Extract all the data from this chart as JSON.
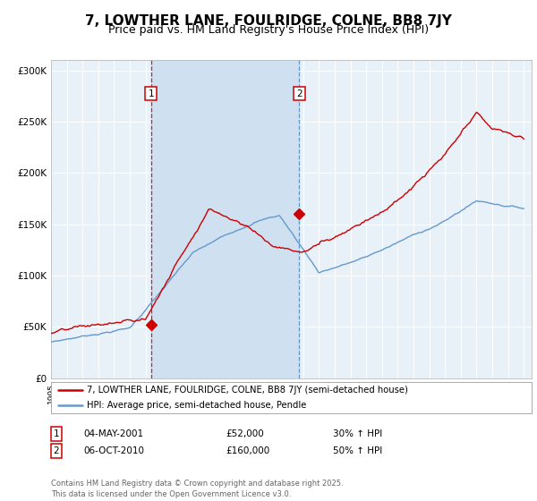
{
  "title": "7, LOWTHER LANE, FOULRIDGE, COLNE, BB8 7JY",
  "subtitle": "Price paid vs. HM Land Registry's House Price Index (HPI)",
  "ylim": [
    0,
    310000
  ],
  "yticks": [
    0,
    50000,
    100000,
    150000,
    200000,
    250000,
    300000
  ],
  "ytick_labels": [
    "£0",
    "£50K",
    "£100K",
    "£150K",
    "£200K",
    "£250K",
    "£300K"
  ],
  "purchase1_date": 2001.34,
  "purchase1_price": 52000,
  "purchase2_date": 2010.76,
  "purchase2_price": 160000,
  "red_line_color": "#cc0000",
  "blue_line_color": "#6699cc",
  "background_color": "#ffffff",
  "chart_bg_color": "#e8f0f8",
  "highlight_bg_color": "#cfe0f0",
  "grid_color": "#ffffff",
  "annotation1_date": "04-MAY-2001",
  "annotation1_price": "£52,000",
  "annotation1_hpi": "30% ↑ HPI",
  "annotation2_date": "06-OCT-2010",
  "annotation2_price": "£160,000",
  "annotation2_hpi": "50% ↑ HPI",
  "legend1": "7, LOWTHER LANE, FOULRIDGE, COLNE, BB8 7JY (semi-detached house)",
  "legend2": "HPI: Average price, semi-detached house, Pendle",
  "footer": "Contains HM Land Registry data © Crown copyright and database right 2025.\nThis data is licensed under the Open Government Licence v3.0.",
  "title_fontsize": 11,
  "subtitle_fontsize": 9
}
